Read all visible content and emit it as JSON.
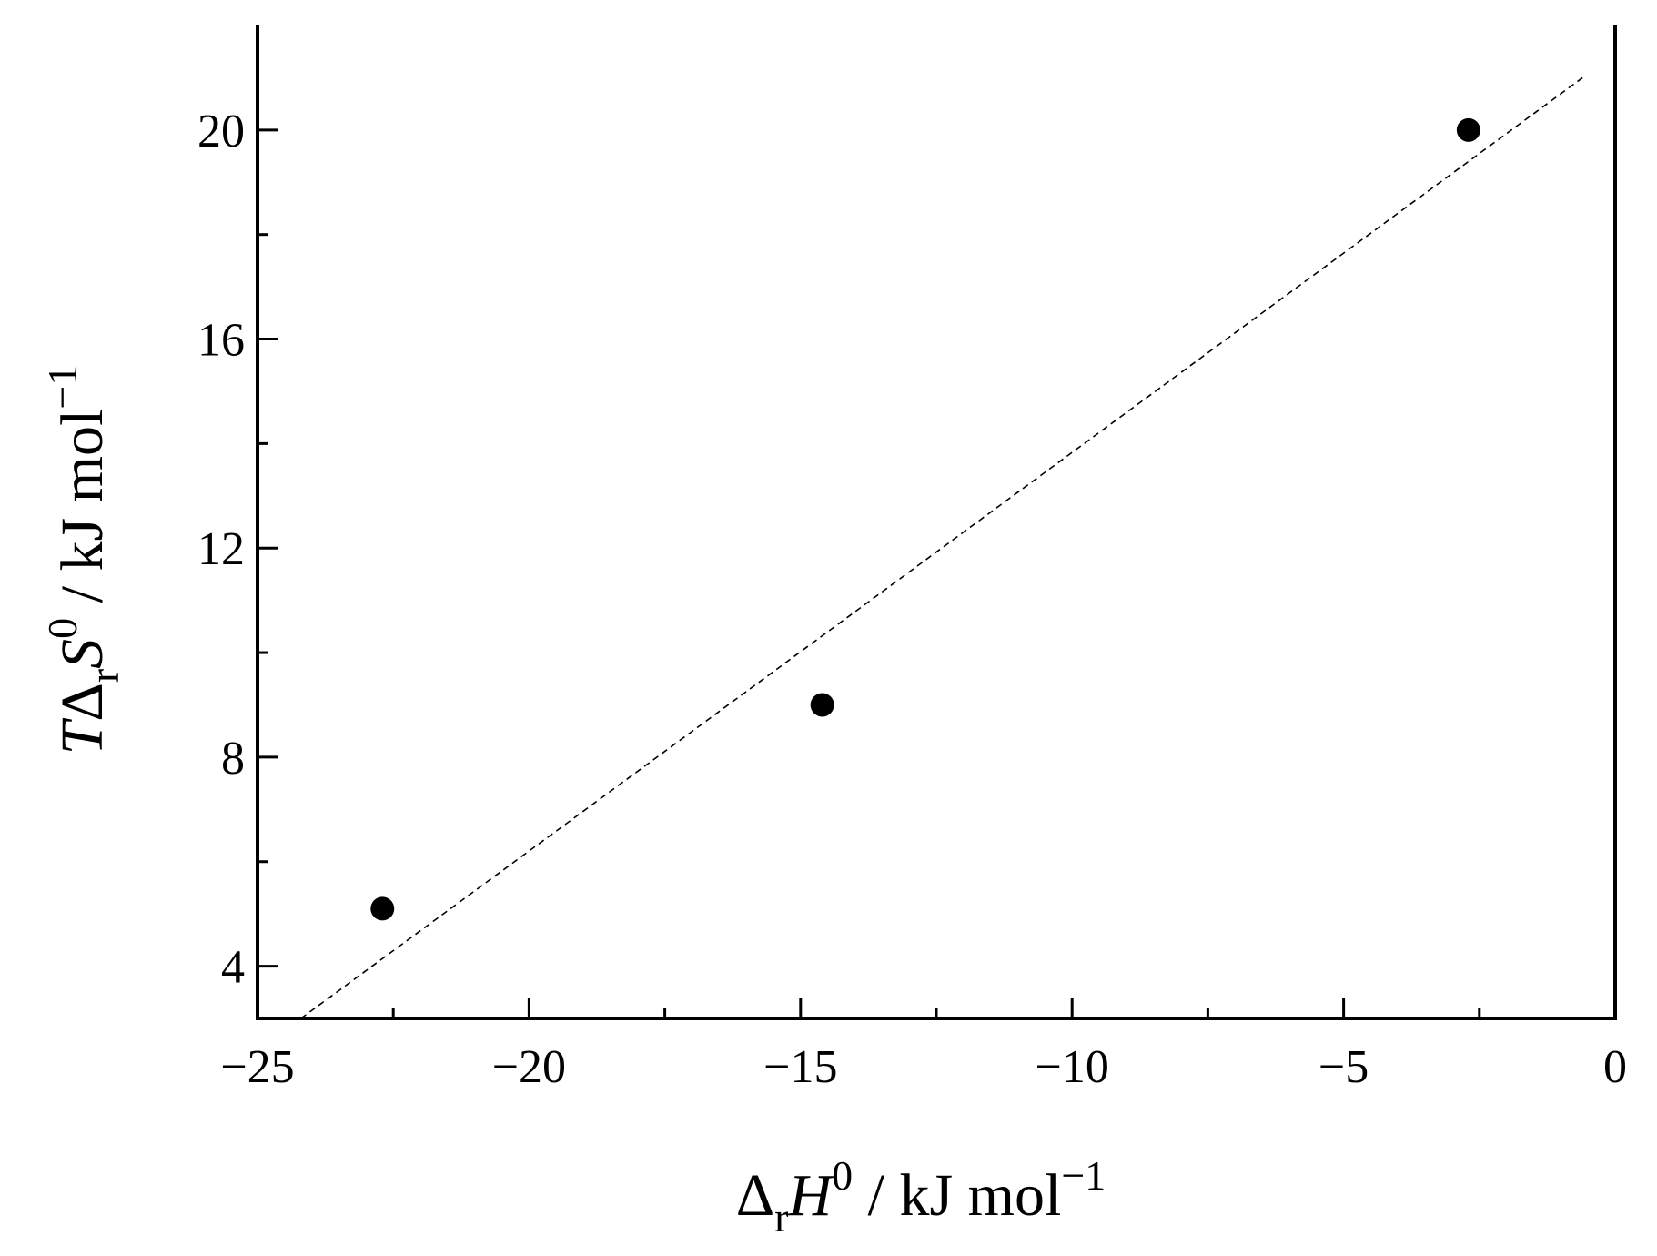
{
  "chart_data": {
    "type": "scatter",
    "xlim": [
      -25,
      0
    ],
    "ylim": [
      3,
      22
    ],
    "x_major_ticks": [
      -25,
      -20,
      -15,
      -10,
      -5,
      0
    ],
    "x_minor_ticks": [
      -22.5,
      -17.5,
      -12.5,
      -7.5,
      -2.5
    ],
    "y_major_ticks": [
      4,
      8,
      12,
      16,
      20
    ],
    "y_minor_ticks": [
      6,
      10,
      14,
      18
    ],
    "x_tick_labels": [
      "−25",
      "−20",
      "−15",
      "−10",
      "−5",
      "0"
    ],
    "y_tick_labels": [
      "4",
      "8",
      "12",
      "16",
      "20"
    ],
    "xlabel": {
      "delta": "Δ",
      "subscript": "r",
      "symbol": "H",
      "superscript": "0",
      "units": " / kJ mol",
      "units_exp": "−1"
    },
    "ylabel": {
      "prefix": "T",
      "delta": "Δ",
      "subscript": "r",
      "symbol": "S",
      "superscript": "0",
      "units": " / kJ mol",
      "units_exp": "−1"
    },
    "series": [
      {
        "x": [
          -22.7,
          -14.6,
          -2.7
        ],
        "y": [
          5.1,
          9.0,
          20.0
        ]
      }
    ],
    "fit_line": {
      "x": [
        -24.2,
        -0.6
      ],
      "y": [
        3.0,
        21.0
      ],
      "style": "dashed"
    },
    "grid": false,
    "box": "full frame, ticks on bottom and left",
    "colors": {
      "marker": "#000000",
      "line": "#000000",
      "axis": "#000000"
    }
  }
}
